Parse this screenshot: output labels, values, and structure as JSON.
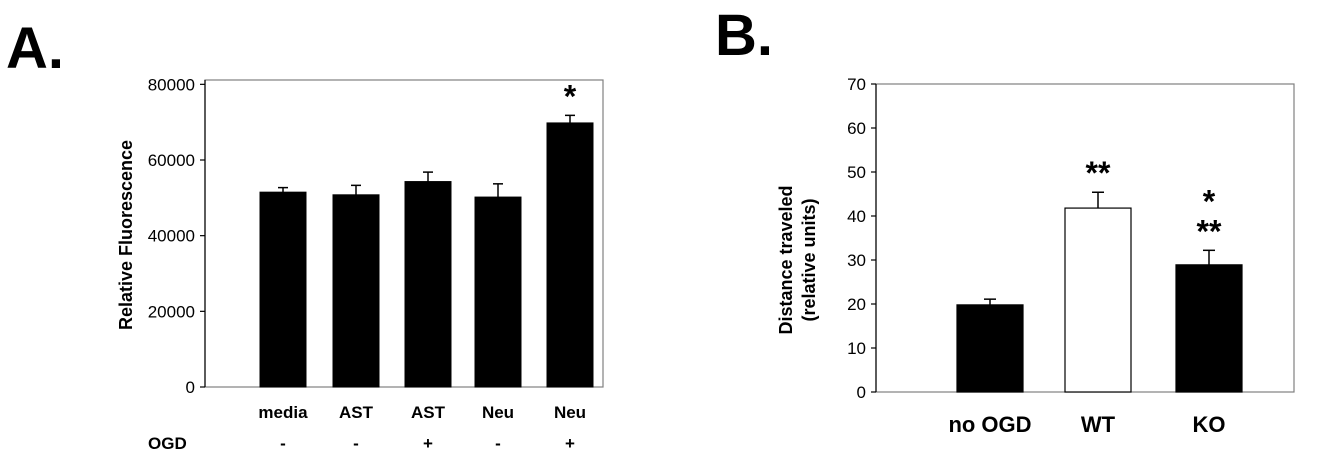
{
  "chart_data": [
    {
      "panel": "A.",
      "type": "bar",
      "ylabel": "Relative Fluorescence",
      "ylim": [
        0,
        90000
      ],
      "yticks": [
        "0",
        "20000",
        "40000",
        "60000",
        "80000"
      ],
      "yticks_values": [
        0,
        20000,
        40000,
        60000,
        80000
      ],
      "categories": [
        "media",
        "AST",
        "AST",
        "Neu",
        "Neu"
      ],
      "row_label": "OGD",
      "row_values": [
        "-",
        "-",
        "+",
        "-",
        "+"
      ],
      "values": [
        51500,
        50800,
        54300,
        50200,
        69800
      ],
      "errors": [
        1200,
        2500,
        2500,
        3500,
        2000
      ],
      "bar_colors": [
        "#000000",
        "#000000",
        "#000000",
        "#000000",
        "#000000"
      ],
      "annotations": [
        "",
        "",
        "",
        "",
        "*"
      ]
    },
    {
      "panel": "B.",
      "type": "bar",
      "ylabel_line1": "Distance traveled",
      "ylabel_line2": "(relative units)",
      "ylim": [
        0,
        70
      ],
      "yticks": [
        "0",
        "10",
        "20",
        "30",
        "40",
        "50",
        "60",
        "70"
      ],
      "yticks_values": [
        0,
        10,
        20,
        30,
        40,
        50,
        60,
        70
      ],
      "categories": [
        "no OGD",
        "WT",
        "KO"
      ],
      "values": [
        19.8,
        41.8,
        28.9
      ],
      "errors": [
        1.3,
        3.6,
        3.3
      ],
      "bar_colors": [
        "#000000",
        "#ffffff",
        "#000000"
      ],
      "annotations_top": [
        "",
        "",
        "*"
      ],
      "annotations": [
        "",
        "**",
        "**"
      ]
    }
  ]
}
